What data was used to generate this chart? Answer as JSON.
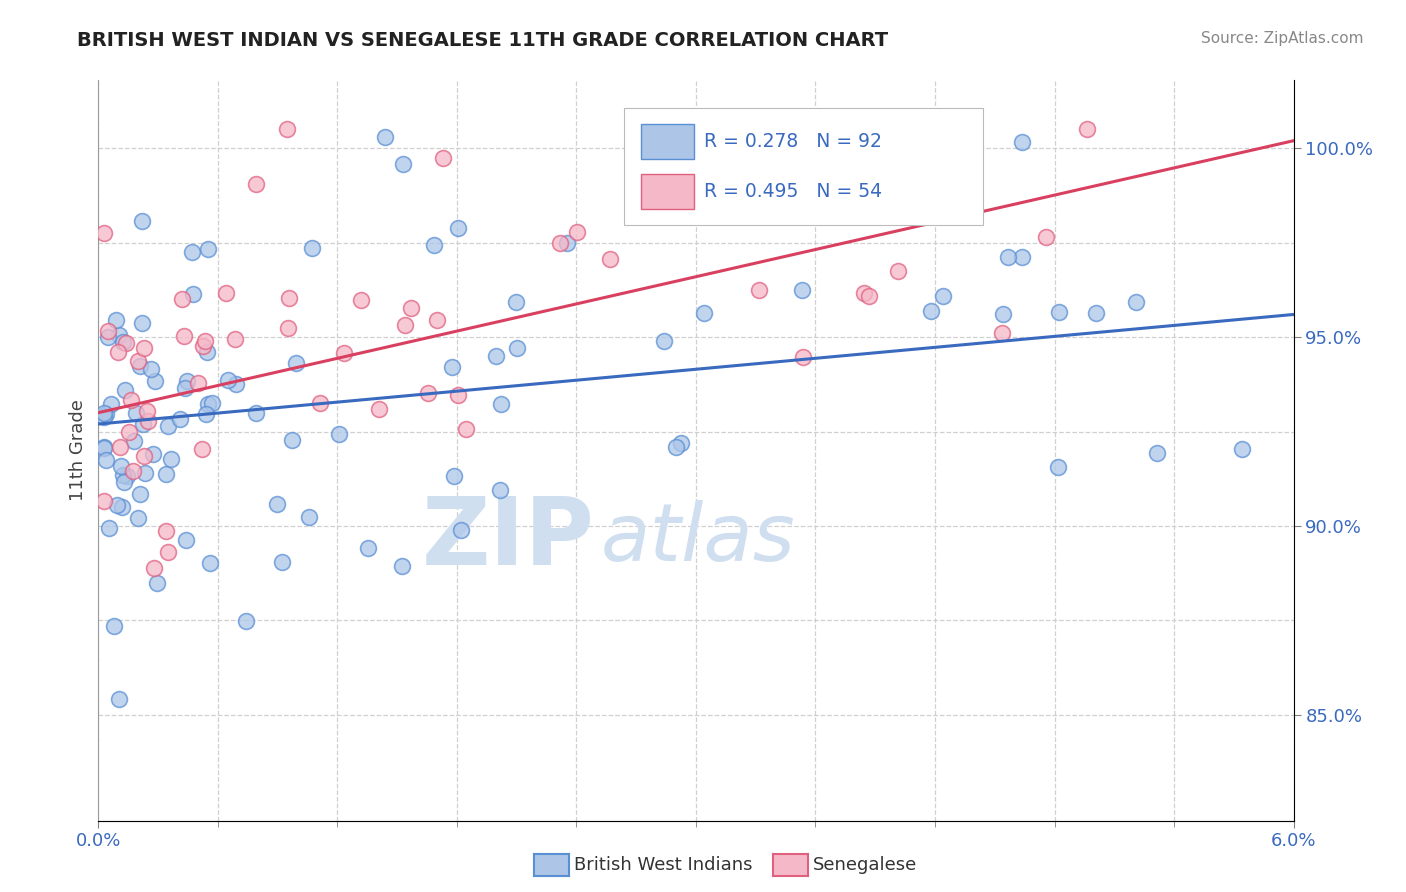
{
  "title": "BRITISH WEST INDIAN VS SENEGALESE 11TH GRADE CORRELATION CHART",
  "source_text": "Source: ZipAtlas.com",
  "ylabel": "11th Grade",
  "xmin": 0.0,
  "xmax": 0.06,
  "ymin": 0.822,
  "ymax": 1.018,
  "blue_R": 0.278,
  "blue_N": 92,
  "pink_R": 0.495,
  "pink_N": 54,
  "blue_fill": "#adc6e8",
  "blue_edge": "#5a8fd4",
  "pink_fill": "#f5b8c8",
  "pink_edge": "#e06080",
  "blue_line": "#3a6abf",
  "pink_line": "#d94060",
  "legend_text_color": "#3a6abf",
  "legend_N_color": "#e84060",
  "watermark_color": "#d0dff0",
  "background_color": "#ffffff",
  "grid_color": "#d0d0d0",
  "ytick_vals": [
    0.85,
    0.9,
    0.95,
    1.0
  ],
  "ytick_labels": [
    "85.0%",
    "90.0%",
    "95.0%",
    "100.0%"
  ],
  "blue_line_y0": 0.927,
  "blue_line_y1": 0.956,
  "pink_line_y0": 0.93,
  "pink_line_y1": 1.002,
  "watermark_zip_size": 72,
  "watermark_atlas_size": 72
}
